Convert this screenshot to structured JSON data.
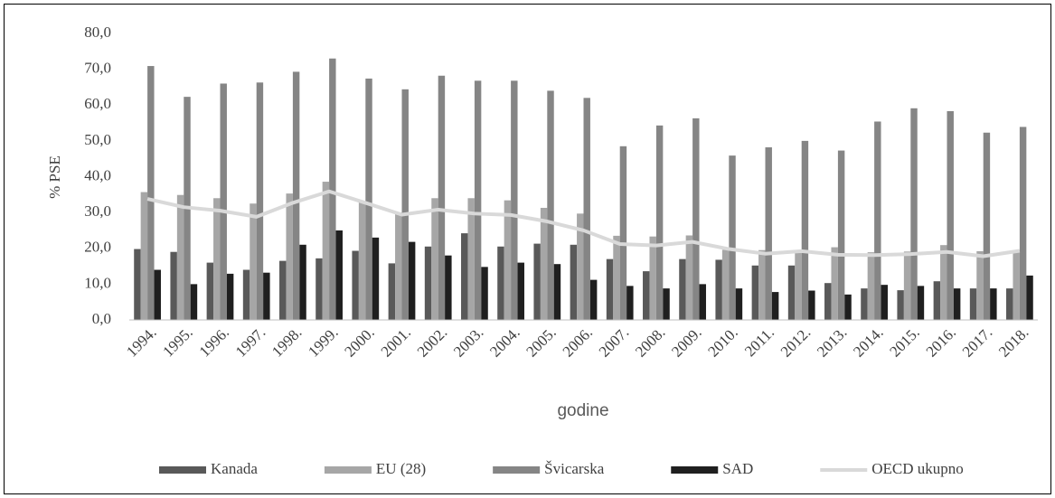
{
  "chart_data": {
    "type": "bar-line",
    "y_label": "% PSE",
    "x_label": "godine",
    "categories": [
      "1994.",
      "1995.",
      "1996.",
      "1997.",
      "1998.",
      "1999.",
      "2000.",
      "2001.",
      "2002.",
      "2003.",
      "2004.",
      "2005.",
      "2006.",
      "2007.",
      "2008.",
      "2009.",
      "2010.",
      "2011.",
      "2012.",
      "2013.",
      "2014.",
      "2015.",
      "2016.",
      "2017.",
      "2018."
    ],
    "series": [
      {
        "name": "Kanada",
        "type": "bar",
        "color": "#595959",
        "values": [
          19.8,
          19.0,
          16.0,
          14.0,
          16.5,
          17.2,
          19.3,
          15.8,
          20.5,
          24.2,
          20.5,
          21.3,
          21.0,
          17.0,
          13.6,
          17.0,
          16.8,
          15.2,
          15.2,
          10.3,
          8.8,
          8.3,
          10.8,
          8.8,
          8.8
        ]
      },
      {
        "name": "EU (28)",
        "type": "bar",
        "color": "#a6a6a6",
        "values": [
          35.7,
          34.9,
          34.0,
          32.5,
          35.3,
          38.6,
          32.8,
          30.0,
          34.0,
          34.0,
          33.4,
          31.3,
          29.7,
          23.5,
          23.3,
          23.6,
          19.6,
          19.5,
          19.3,
          20.3,
          18.9,
          19.1,
          20.9,
          19.2,
          19.5
        ]
      },
      {
        "name": "Švicarska",
        "type": "bar",
        "color": "#858585",
        "values": [
          70.9,
          62.3,
          66.0,
          66.3,
          69.3,
          73.0,
          67.4,
          64.4,
          68.2,
          66.8,
          66.8,
          64.0,
          62.0,
          48.5,
          54.3,
          56.3,
          45.9,
          48.2,
          50.0,
          47.3,
          55.4,
          59.1,
          58.3,
          52.3,
          53.9
        ]
      },
      {
        "name": "SAD",
        "type": "bar",
        "color": "#1f1f1f",
        "values": [
          14.0,
          10.0,
          12.9,
          13.2,
          21.0,
          25.0,
          23.0,
          21.8,
          18.0,
          14.8,
          16.0,
          15.6,
          11.2,
          9.5,
          8.8,
          10.0,
          8.8,
          7.8,
          8.2,
          7.1,
          9.8,
          9.5,
          8.8,
          8.8,
          12.4
        ]
      },
      {
        "name": "OECD ukupno",
        "type": "line",
        "color": "#d9d9d9",
        "values": [
          33.8,
          31.5,
          30.5,
          28.8,
          32.7,
          35.9,
          32.7,
          29.4,
          30.8,
          29.7,
          29.3,
          27.5,
          25.0,
          21.2,
          20.8,
          21.8,
          19.8,
          18.5,
          19.2,
          18.2,
          18.1,
          18.4,
          19.0,
          17.8,
          19.3
        ]
      }
    ],
    "ylim": [
      0,
      80
    ],
    "yticks": [
      {
        "value": 0,
        "label": "0,0"
      },
      {
        "value": 10,
        "label": "10,0"
      },
      {
        "value": 20,
        "label": "20,0"
      },
      {
        "value": 30,
        "label": "30,0"
      },
      {
        "value": 40,
        "label": "40,0"
      },
      {
        "value": 50,
        "label": "50,0"
      },
      {
        "value": 60,
        "label": "60,0"
      },
      {
        "value": 70,
        "label": "70,0"
      },
      {
        "value": 80,
        "label": "80,0"
      }
    ],
    "grid": false,
    "legend": "bottom"
  }
}
